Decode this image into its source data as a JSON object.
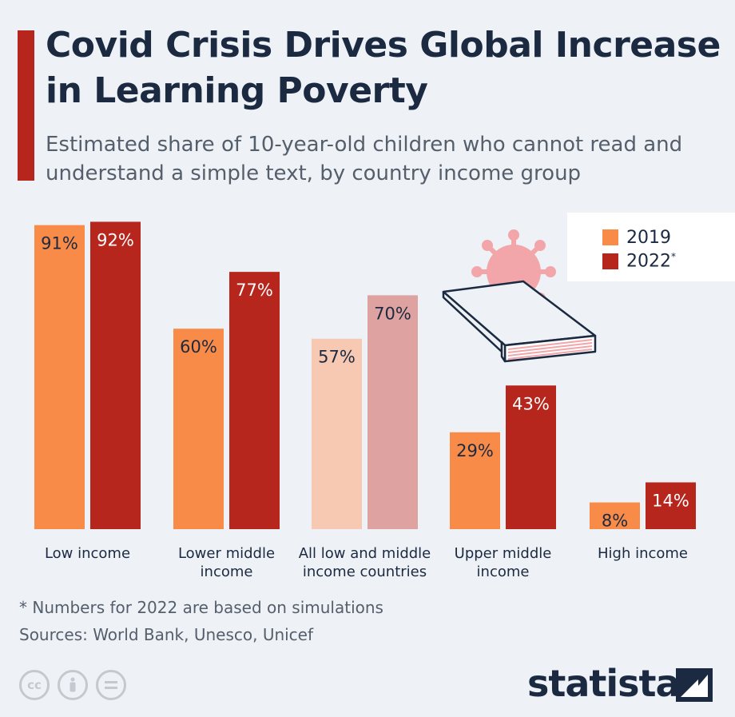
{
  "header": {
    "title": "Covid Crisis Drives Global Increase in Learning Poverty",
    "subtitle": "Estimated share of 10-year-old children who cannot read and understand a simple text, by country income group"
  },
  "legend": {
    "items": [
      {
        "label": "2019",
        "color": "#f98b48"
      },
      {
        "label": "2022",
        "suffix": "*",
        "color": "#b7261c"
      }
    ]
  },
  "chart_data": {
    "type": "bar",
    "title": "Covid Crisis Drives Global Increase in Learning Poverty",
    "categories": [
      [
        "Low income"
      ],
      [
        "Lower middle",
        "income"
      ],
      [
        "All low and middle",
        "income countries"
      ],
      [
        "Upper middle",
        "income"
      ],
      [
        "High income"
      ]
    ],
    "series": [
      {
        "name": "2019",
        "values": [
          91,
          60,
          57,
          29,
          8
        ],
        "color": "#f98b48",
        "highlight_color": "#f7c9b2"
      },
      {
        "name": "2022*",
        "values": [
          92,
          77,
          70,
          43,
          14
        ],
        "color": "#b7261c",
        "highlight_color": "#dea3a0"
      }
    ],
    "highlighted_category_index": 2,
    "value_suffix": "%",
    "ylim": [
      0,
      100
    ],
    "grid": false,
    "legend_position": "top-right"
  },
  "footer": {
    "note": "* Numbers for 2022 are based on simulations",
    "sources": "Sources: World Bank, Unesco, Unicef",
    "brand": "statista",
    "license_icons": [
      "cc-icon",
      "attribution-icon",
      "no-derivatives-icon"
    ]
  }
}
